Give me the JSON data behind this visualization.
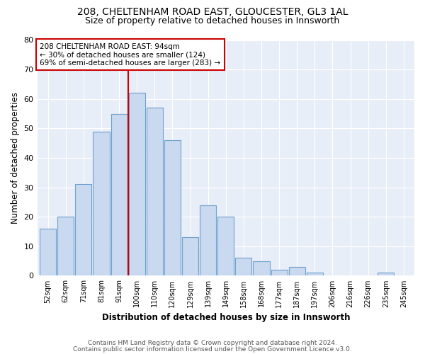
{
  "title_line1": "208, CHELTENHAM ROAD EAST, GLOUCESTER, GL3 1AL",
  "title_line2": "Size of property relative to detached houses in Innsworth",
  "xlabel": "Distribution of detached houses by size in Innsworth",
  "ylabel": "Number of detached properties",
  "bar_labels": [
    "52sqm",
    "62sqm",
    "71sqm",
    "81sqm",
    "91sqm",
    "100sqm",
    "110sqm",
    "120sqm",
    "129sqm",
    "139sqm",
    "149sqm",
    "158sqm",
    "168sqm",
    "177sqm",
    "187sqm",
    "197sqm",
    "206sqm",
    "216sqm",
    "226sqm",
    "235sqm",
    "245sqm"
  ],
  "bar_values": [
    16,
    20,
    31,
    49,
    55,
    62,
    57,
    46,
    13,
    24,
    20,
    6,
    5,
    2,
    3,
    1,
    0,
    0,
    0,
    1,
    0
  ],
  "bar_color": "#c9d9f0",
  "bar_edge_color": "#6fa0cc",
  "vline_x_index": 4.5,
  "vline_color": "#cc0000",
  "annotation_title": "208 CHELTENHAM ROAD EAST: 94sqm",
  "annotation_line1": "← 30% of detached houses are smaller (124)",
  "annotation_line2": "69% of semi-detached houses are larger (283) →",
  "annotation_box_color": "#cc0000",
  "ylim": [
    0,
    80
  ],
  "yticks": [
    0,
    10,
    20,
    30,
    40,
    50,
    60,
    70,
    80
  ],
  "footer_line1": "Contains HM Land Registry data © Crown copyright and database right 2024.",
  "footer_line2": "Contains public sector information licensed under the Open Government Licence v3.0.",
  "background_color": "#ffffff",
  "plot_bg_color": "#e8eef8",
  "grid_color": "#ffffff"
}
